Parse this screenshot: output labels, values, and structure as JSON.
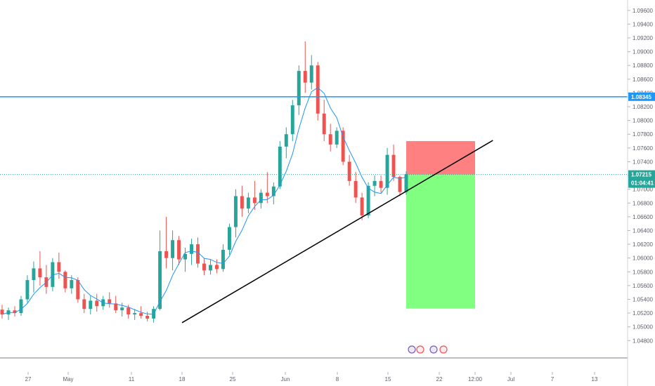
{
  "chart_data": {
    "type": "candlestick",
    "x_tick_labels": [
      "27",
      "May",
      "11",
      "18",
      "25",
      "Jun",
      "8",
      "15",
      "22",
      "12:00",
      "Jul",
      "7",
      "13"
    ],
    "y_tick_labels": [
      "1.04800",
      "1.05000",
      "1.05200",
      "1.05400",
      "1.05600",
      "1.05800",
      "1.06000",
      "1.06200",
      "1.06400",
      "1.06600",
      "1.06800",
      "1.07000",
      "1.07200",
      "1.07400",
      "1.07600",
      "1.07800",
      "1.08000",
      "1.08200",
      "1.08400",
      "1.08600",
      "1.08800",
      "1.09000",
      "1.09200",
      "1.09400",
      "1.09600"
    ],
    "ylim": [
      1.0465,
      1.097
    ],
    "horizontal_level": {
      "label": "1.08345",
      "value": 1.08345,
      "color": "#2196f3"
    },
    "current_price": {
      "label": "1.07215",
      "value": 1.07215,
      "countdown": "01:04:41",
      "color": "#26a69a"
    },
    "trendline": {
      "start": {
        "date": "2020-05-18",
        "price": 1.0506
      },
      "end": {
        "date": "2020-06-30",
        "price": 1.0771
      }
    },
    "position": {
      "type": "short",
      "entry": 1.07215,
      "stop": 1.077,
      "target": 1.05265,
      "stop_color": "#ff8080",
      "target_color": "#80ff80"
    },
    "moving_average": {
      "color": "#2196f3"
    },
    "candle_colors": {
      "up": "#26a69a",
      "down": "#ef5350"
    },
    "ohlc": [
      [
        1.0525,
        1.0532,
        1.0512,
        1.0518
      ],
      [
        1.0518,
        1.0528,
        1.051,
        1.0524
      ],
      [
        1.0524,
        1.053,
        1.0515,
        1.052
      ],
      [
        1.052,
        1.0545,
        1.0516,
        1.054
      ],
      [
        1.054,
        1.0575,
        1.0535,
        1.0568
      ],
      [
        1.0568,
        1.0595,
        1.055,
        1.0585
      ],
      [
        1.0585,
        1.061,
        1.056,
        1.0572
      ],
      [
        1.0572,
        1.059,
        1.0548,
        1.0558
      ],
      [
        1.0558,
        1.06,
        1.0552,
        1.0594
      ],
      [
        1.0594,
        1.0608,
        1.057,
        1.058
      ],
      [
        1.058,
        1.0582,
        1.055,
        1.0556
      ],
      [
        1.0556,
        1.0575,
        1.0548,
        1.0568
      ],
      [
        1.0568,
        1.0572,
        1.0535,
        1.054
      ],
      [
        1.054,
        1.0548,
        1.052,
        1.0526
      ],
      [
        1.0526,
        1.0545,
        1.0518,
        1.0538
      ],
      [
        1.0538,
        1.0548,
        1.0522,
        1.053
      ],
      [
        1.053,
        1.0545,
        1.0525,
        1.054
      ],
      [
        1.054,
        1.055,
        1.0528,
        1.0534
      ],
      [
        1.0534,
        1.0545,
        1.052,
        1.0524
      ],
      [
        1.0524,
        1.0535,
        1.0515,
        1.0528
      ],
      [
        1.0528,
        1.0532,
        1.0512,
        1.0518
      ],
      [
        1.0518,
        1.0526,
        1.051,
        1.052
      ],
      [
        1.052,
        1.053,
        1.0512,
        1.0516
      ],
      [
        1.0516,
        1.0522,
        1.0508,
        1.0512
      ],
      [
        1.0512,
        1.053,
        1.0506,
        1.0526
      ],
      [
        1.0526,
        1.064,
        1.0524,
        1.061
      ],
      [
        1.061,
        1.066,
        1.0585,
        1.06
      ],
      [
        1.06,
        1.064,
        1.0582,
        1.0626
      ],
      [
        1.0626,
        1.0632,
        1.059,
        1.0598
      ],
      [
        1.0598,
        1.0615,
        1.058,
        1.0606
      ],
      [
        1.0606,
        1.0628,
        1.059,
        1.062
      ],
      [
        1.062,
        1.063,
        1.0586,
        1.0592
      ],
      [
        1.0592,
        1.06,
        1.0575,
        1.0582
      ],
      [
        1.0582,
        1.0598,
        1.0576,
        1.059
      ],
      [
        1.059,
        1.0598,
        1.0578,
        1.0584
      ],
      [
        1.0584,
        1.062,
        1.058,
        1.0612
      ],
      [
        1.0612,
        1.065,
        1.0605,
        1.0645
      ],
      [
        1.0645,
        1.07,
        1.063,
        1.069
      ],
      [
        1.069,
        1.0705,
        1.066,
        1.0672
      ],
      [
        1.0672,
        1.0695,
        1.0665,
        1.0688
      ],
      [
        1.0688,
        1.0712,
        1.067,
        1.068
      ],
      [
        1.068,
        1.07,
        1.0672,
        1.0695
      ],
      [
        1.0695,
        1.0725,
        1.068,
        1.069
      ],
      [
        1.069,
        1.071,
        1.0678,
        1.0704
      ],
      [
        1.0704,
        1.077,
        1.07,
        1.0762
      ],
      [
        1.0762,
        1.079,
        1.0745,
        1.078
      ],
      [
        1.078,
        1.083,
        1.077,
        1.0822
      ],
      [
        1.0822,
        1.088,
        1.0808,
        1.0872
      ],
      [
        1.0872,
        1.0915,
        1.084,
        1.0855
      ],
      [
        1.0855,
        1.0895,
        1.0845,
        1.088
      ],
      [
        1.088,
        1.0885,
        1.08,
        1.081
      ],
      [
        1.081,
        1.083,
        1.077,
        1.078
      ],
      [
        1.078,
        1.0795,
        1.0755,
        1.0765
      ],
      [
        1.0765,
        1.079,
        1.076,
        1.0785
      ],
      [
        1.0785,
        1.079,
        1.0735,
        1.074
      ],
      [
        1.074,
        1.075,
        1.0705,
        1.0712
      ],
      [
        1.0712,
        1.0725,
        1.068,
        1.0688
      ],
      [
        1.0688,
        1.0695,
        1.0655,
        1.0662
      ],
      [
        1.0662,
        1.071,
        1.0658,
        1.0705
      ],
      [
        1.0705,
        1.072,
        1.069,
        1.0712
      ],
      [
        1.0712,
        1.072,
        1.0695,
        1.0702
      ],
      [
        1.0702,
        1.076,
        1.0692,
        1.075
      ],
      [
        1.075,
        1.0765,
        1.0712,
        1.0718
      ],
      [
        1.0718,
        1.072,
        1.069,
        1.0696
      ],
      [
        1.0696,
        1.0726,
        1.0692,
        1.0722
      ]
    ]
  }
}
